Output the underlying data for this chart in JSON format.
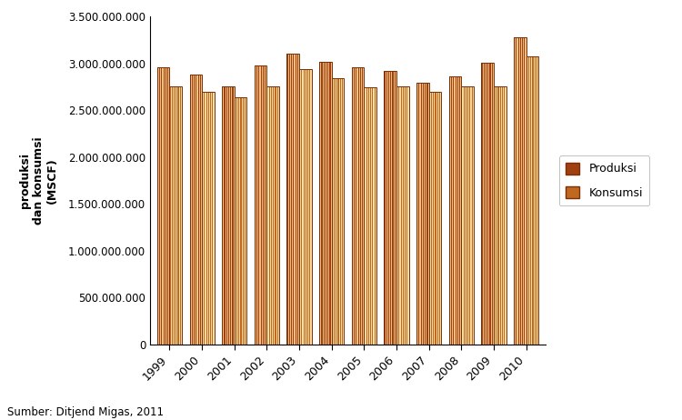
{
  "years": [
    "1999",
    "2000",
    "2001",
    "2002",
    "2003",
    "2004",
    "2005",
    "2006",
    "2007",
    "2008",
    "2009",
    "2010"
  ],
  "produksi": [
    2960000000,
    2880000000,
    2760000000,
    2980000000,
    3110000000,
    3020000000,
    2960000000,
    2920000000,
    2800000000,
    2860000000,
    3010000000,
    3280000000
  ],
  "konsumsi": [
    2760000000,
    2700000000,
    2640000000,
    2760000000,
    2940000000,
    2840000000,
    2750000000,
    2760000000,
    2700000000,
    2760000000,
    2760000000,
    3080000000
  ],
  "ylabel": "produksi\ndan konsumsi\n(MSCF)",
  "ylim_max": 3500000000,
  "yticks": [
    0,
    500000000,
    1000000000,
    1500000000,
    2000000000,
    2500000000,
    3000000000,
    3500000000
  ],
  "produksi_dark": "#A04010",
  "produksi_light": "#F0C080",
  "konsumsi_dark": "#C06820",
  "konsumsi_light": "#F8DCA0",
  "edge_color": "#7A3008",
  "background_color": "#FFFFFF",
  "legend_produksi": "Produksi",
  "legend_konsumsi": "Konsumsi",
  "source_text": "Sumber: Ditjend Migas, 2011",
  "bar_width": 0.38,
  "n_stripes": 12
}
